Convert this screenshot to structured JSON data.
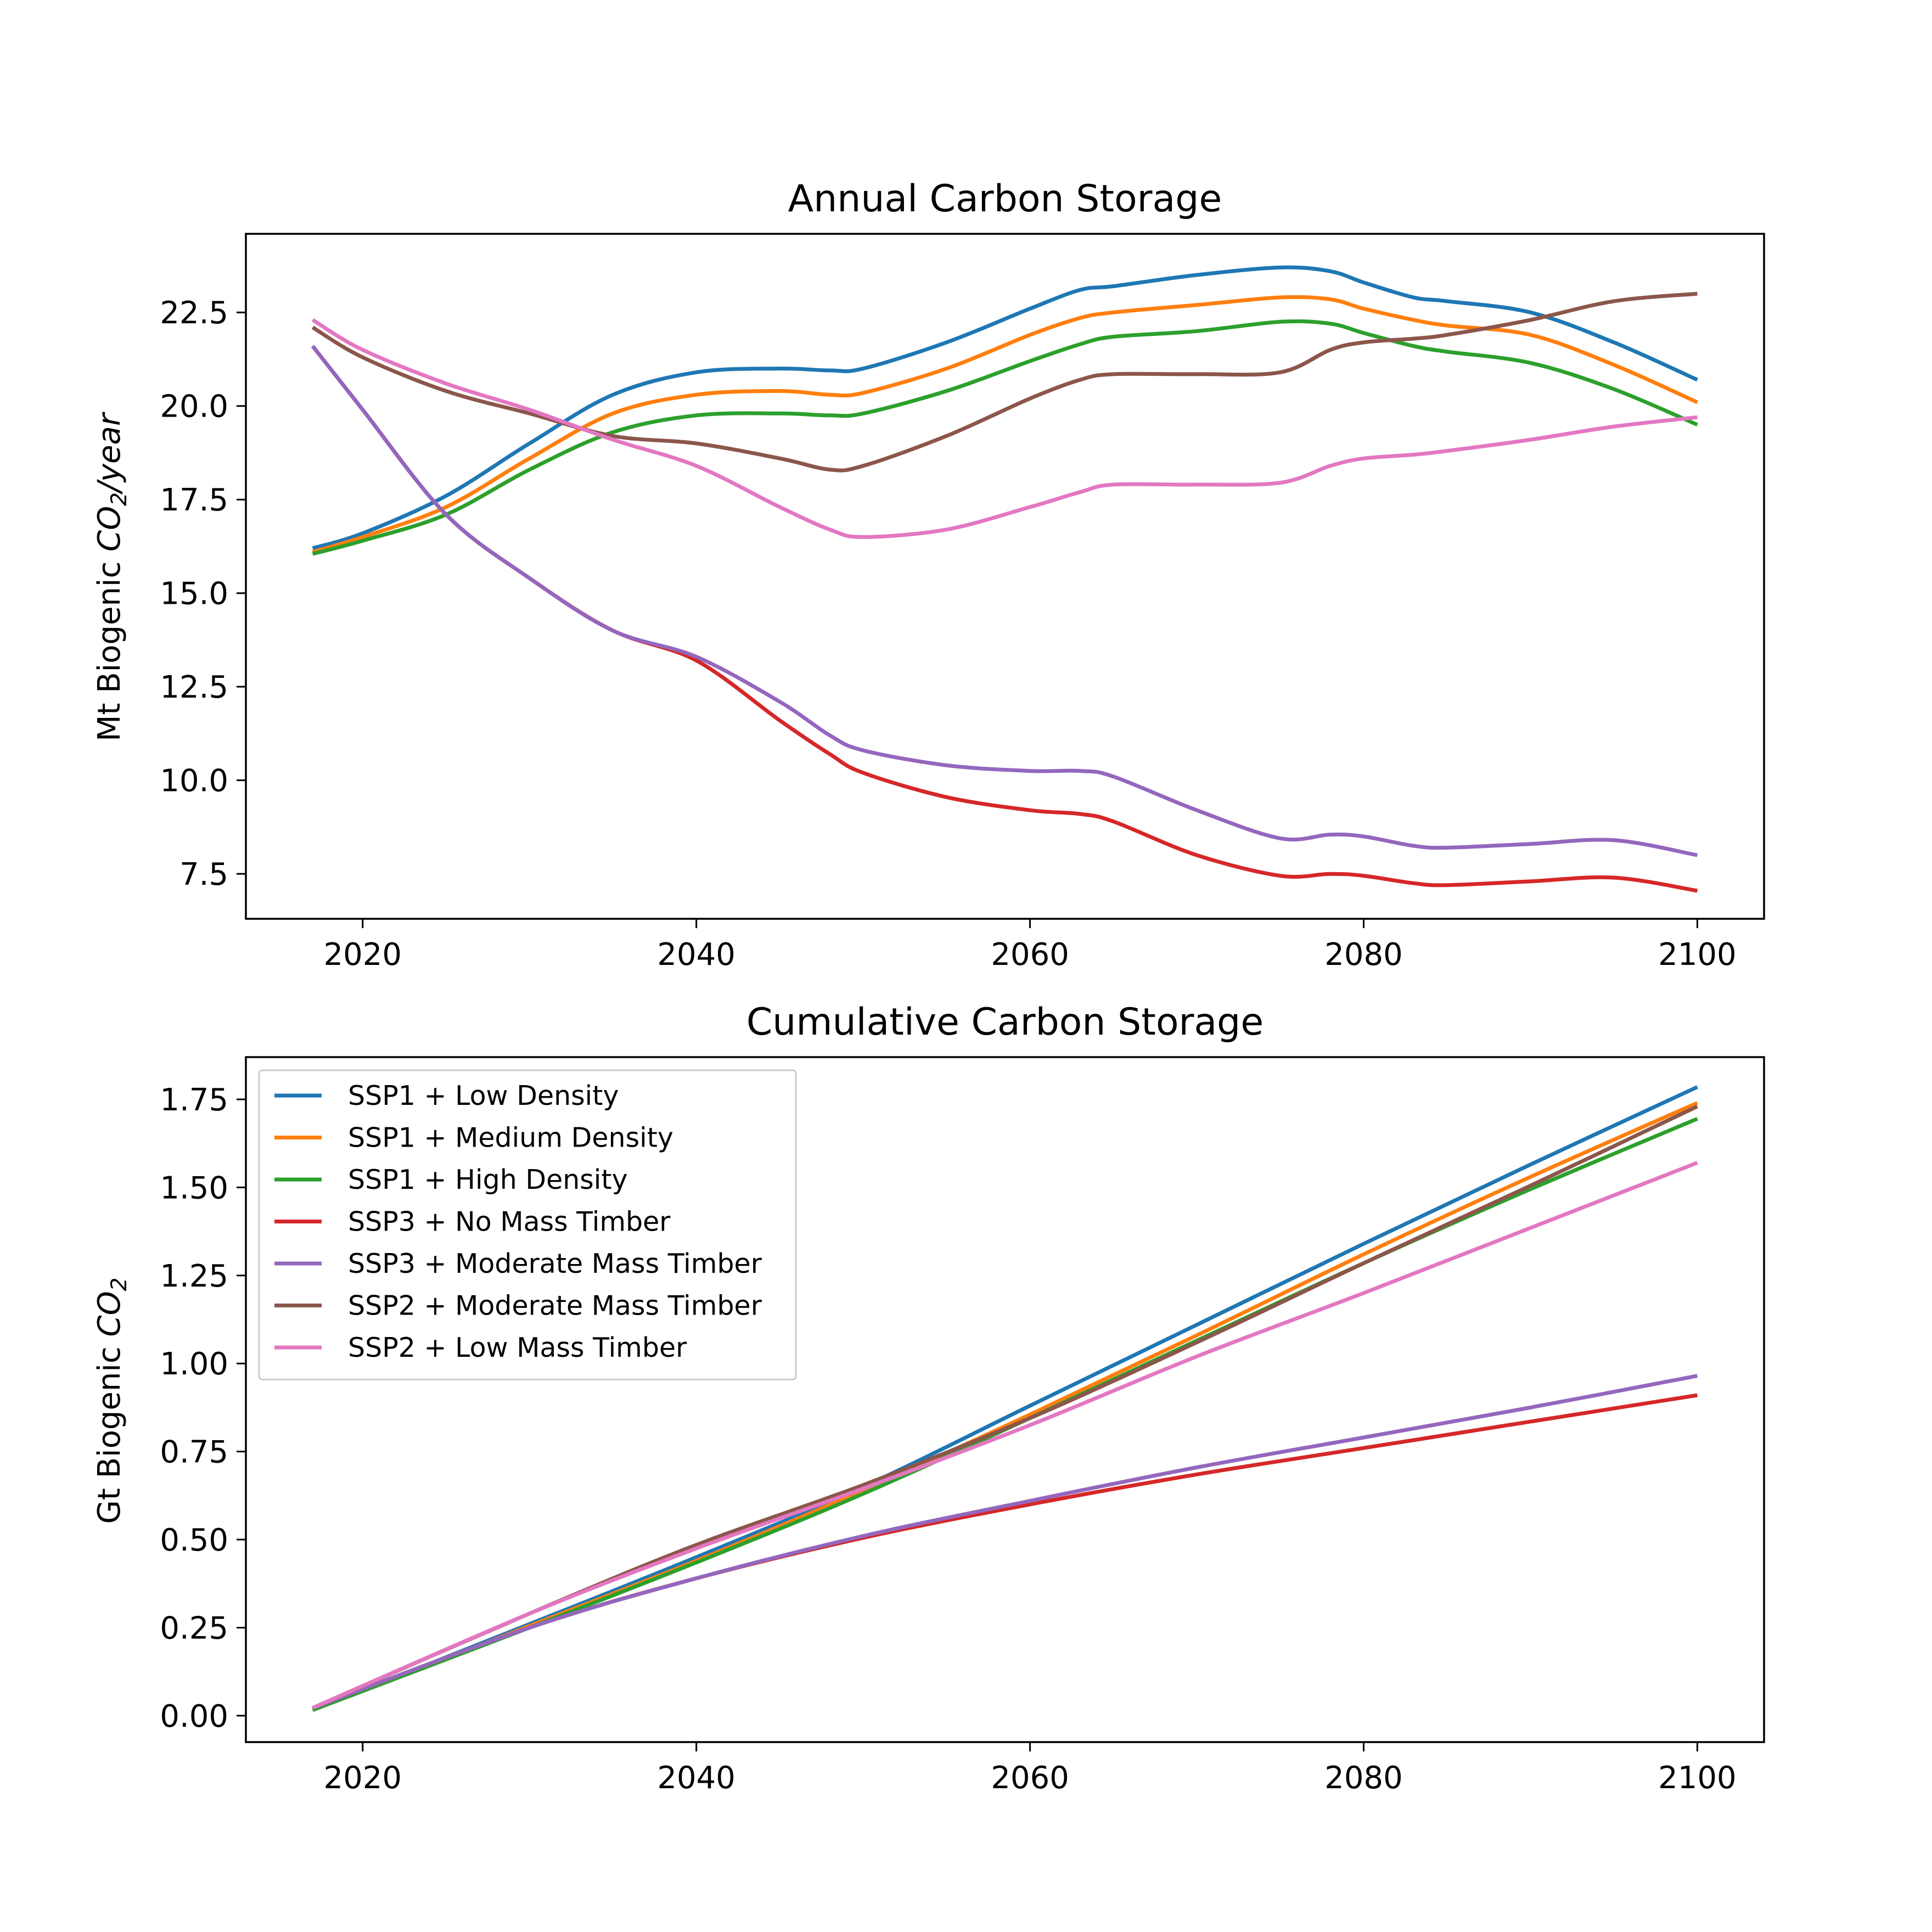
{
  "chart_data": [
    {
      "type": "line",
      "title": "Annual Carbon Storage",
      "xlabel": "",
      "ylabel": {
        "prefix": "Mt Biogenic ",
        "var": "CO",
        "sub": "2",
        "suffix": "/year"
      },
      "xlim": [
        2013,
        2104
      ],
      "ylim": [
        6.3,
        24.6
      ],
      "xticks": [
        "2020",
        "2040",
        "2060",
        "2080",
        "2100"
      ],
      "yticks": [
        "7.5",
        "10.0",
        "12.5",
        "15.0",
        "17.5",
        "20.0",
        "22.5"
      ],
      "x": [
        2017,
        2020,
        2025,
        2030,
        2035,
        2040,
        2045,
        2048,
        2050,
        2055,
        2060,
        2063,
        2065,
        2070,
        2075,
        2078,
        2080,
        2083,
        2085,
        2090,
        2095,
        2100
      ],
      "series": [
        {
          "name": "SSP1 + Low Density",
          "color": "#1f77b4",
          "values": [
            16.2,
            16.6,
            17.6,
            19.0,
            20.3,
            20.9,
            21.0,
            20.95,
            21.0,
            21.7,
            22.6,
            23.1,
            23.2,
            23.5,
            23.7,
            23.6,
            23.3,
            22.9,
            22.8,
            22.5,
            21.7,
            20.7
          ]
        },
        {
          "name": "SSP1 + Medium Density",
          "color": "#ff7f0e",
          "values": [
            16.1,
            16.5,
            17.3,
            18.6,
            19.8,
            20.3,
            20.4,
            20.3,
            20.35,
            21.0,
            21.9,
            22.35,
            22.5,
            22.7,
            22.9,
            22.85,
            22.6,
            22.3,
            22.15,
            21.9,
            21.1,
            20.1
          ]
        },
        {
          "name": "SSP1 + High Density",
          "color": "#2ca02c",
          "values": [
            16.05,
            16.4,
            17.1,
            18.3,
            19.3,
            19.75,
            19.8,
            19.75,
            19.8,
            20.4,
            21.2,
            21.65,
            21.85,
            22.0,
            22.25,
            22.2,
            21.95,
            21.6,
            21.45,
            21.15,
            20.45,
            19.5
          ]
        },
        {
          "name": "SSP3 + No Mass Timber",
          "color": "#d62728",
          "values": [
            21.6,
            19.9,
            17.1,
            15.4,
            14.0,
            13.2,
            11.6,
            10.7,
            10.2,
            9.55,
            9.2,
            9.1,
            8.9,
            8.0,
            7.45,
            7.5,
            7.45,
            7.25,
            7.2,
            7.3,
            7.4,
            7.05
          ]
        },
        {
          "name": "SSP3 + Moderate Mass Timber",
          "color": "#9467bd",
          "values": [
            21.6,
            19.9,
            17.1,
            15.4,
            14.0,
            13.3,
            12.1,
            11.2,
            10.8,
            10.4,
            10.25,
            10.25,
            10.1,
            9.2,
            8.45,
            8.55,
            8.5,
            8.25,
            8.2,
            8.3,
            8.4,
            8.0
          ]
        },
        {
          "name": "SSP2 + Moderate Mass Timber",
          "color": "#8c564b",
          "values": [
            22.1,
            21.3,
            20.4,
            19.8,
            19.2,
            19.0,
            18.6,
            18.3,
            18.4,
            19.2,
            20.2,
            20.7,
            20.85,
            20.85,
            20.9,
            21.5,
            21.7,
            21.8,
            21.9,
            22.3,
            22.8,
            23.0
          ]
        },
        {
          "name": "SSP2 + Low Mass Timber",
          "color": "#e377c2",
          "values": [
            22.3,
            21.5,
            20.6,
            19.9,
            19.1,
            18.4,
            17.3,
            16.7,
            16.5,
            16.7,
            17.3,
            17.7,
            17.9,
            17.9,
            17.95,
            18.4,
            18.6,
            18.7,
            18.8,
            19.1,
            19.45,
            19.7
          ]
        }
      ]
    },
    {
      "type": "line",
      "title": "Cumulative Carbon Storage",
      "xlabel": "",
      "ylabel": {
        "prefix": "Gt Biogenic ",
        "var": "CO",
        "sub": "2",
        "suffix": ""
      },
      "xlim": [
        2013,
        2104
      ],
      "ylim": [
        -0.075,
        1.87
      ],
      "xticks": [
        "2020",
        "2040",
        "2060",
        "2080",
        "2100"
      ],
      "yticks": [
        "0.00",
        "0.25",
        "0.50",
        "0.75",
        "1.00",
        "1.25",
        "1.50",
        "1.75"
      ],
      "legend_position": "upper left",
      "x": [
        2017,
        2030,
        2040,
        2050,
        2060,
        2070,
        2080,
        2090,
        2100
      ],
      "series": [
        {
          "name": "SSP1 + Low Density",
          "color": "#1f77b4",
          "values": [
            0.016,
            0.26,
            0.45,
            0.65,
            0.88,
            1.11,
            1.34,
            1.565,
            1.785
          ]
        },
        {
          "name": "SSP1 + Medium Density",
          "color": "#ff7f0e",
          "values": [
            0.016,
            0.255,
            0.44,
            0.64,
            0.855,
            1.08,
            1.31,
            1.53,
            1.74
          ]
        },
        {
          "name": "SSP1 + High Density",
          "color": "#2ca02c",
          "values": [
            0.016,
            0.25,
            0.435,
            0.63,
            0.845,
            1.065,
            1.285,
            1.495,
            1.695
          ]
        },
        {
          "name": "SSP3 + No Mass Timber",
          "color": "#d62728",
          "values": [
            0.022,
            0.25,
            0.39,
            0.505,
            0.6,
            0.685,
            0.76,
            0.835,
            0.91
          ]
        },
        {
          "name": "SSP3 + Moderate Mass Timber",
          "color": "#9467bd",
          "values": [
            0.022,
            0.25,
            0.39,
            0.51,
            0.61,
            0.705,
            0.79,
            0.875,
            0.965
          ]
        },
        {
          "name": "SSP2 + Moderate Mass Timber",
          "color": "#8c564b",
          "values": [
            0.022,
            0.29,
            0.485,
            0.655,
            0.845,
            1.06,
            1.285,
            1.505,
            1.73
          ]
        },
        {
          "name": "SSP2 + Low Mass Timber",
          "color": "#e377c2",
          "values": [
            0.022,
            0.29,
            0.475,
            0.645,
            0.825,
            1.02,
            1.2,
            1.385,
            1.57
          ]
        }
      ]
    }
  ]
}
